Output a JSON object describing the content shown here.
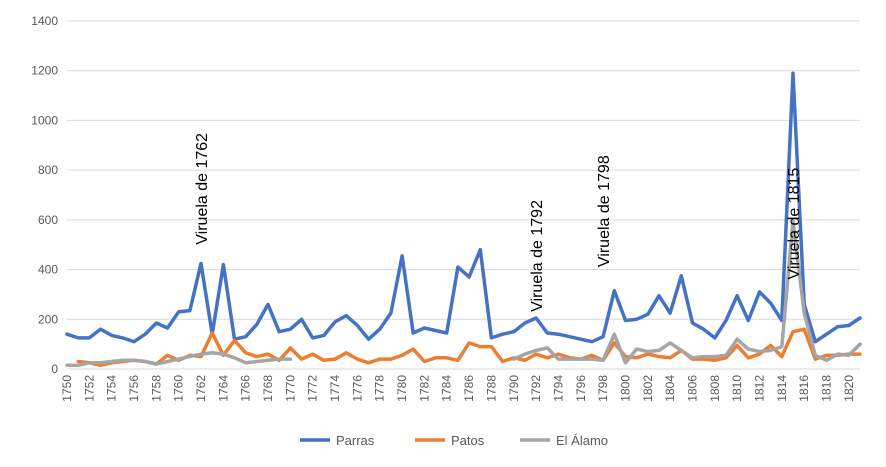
{
  "chart_data": {
    "type": "line",
    "title": "",
    "xlabel": "",
    "ylabel": "",
    "ylim": [
      0,
      1400
    ],
    "yticks": [
      0,
      200,
      400,
      600,
      800,
      1000,
      1200,
      1400
    ],
    "xlim": [
      1750,
      1820
    ],
    "xticks": [
      1750,
      1752,
      1754,
      1756,
      1758,
      1760,
      1762,
      1764,
      1766,
      1768,
      1770,
      1772,
      1774,
      1776,
      1778,
      1780,
      1782,
      1784,
      1786,
      1788,
      1790,
      1792,
      1794,
      1796,
      1798,
      1800,
      1802,
      1804,
      1806,
      1808,
      1810,
      1812,
      1814,
      1816,
      1818,
      1820
    ],
    "grid": "horizontal",
    "legend": "bottom",
    "series": [
      {
        "name": "Parras",
        "color": "#4472C4",
        "points": [
          [
            1750,
            140
          ],
          [
            1751,
            125
          ],
          [
            1752,
            125
          ],
          [
            1753,
            160
          ],
          [
            1754,
            135
          ],
          [
            1755,
            125
          ],
          [
            1756,
            110
          ],
          [
            1757,
            140
          ],
          [
            1758,
            185
          ],
          [
            1759,
            165
          ],
          [
            1760,
            230
          ],
          [
            1761,
            235
          ],
          [
            1762,
            425
          ],
          [
            1763,
            140
          ],
          [
            1764,
            420
          ],
          [
            1765,
            120
          ],
          [
            1766,
            130
          ],
          [
            1767,
            180
          ],
          [
            1768,
            260
          ],
          [
            1769,
            150
          ],
          [
            1770,
            160
          ],
          [
            1771,
            200
          ],
          [
            1772,
            125
          ],
          [
            1773,
            135
          ],
          [
            1774,
            190
          ],
          [
            1775,
            215
          ],
          [
            1776,
            175
          ],
          [
            1777,
            120
          ],
          [
            1778,
            160
          ],
          [
            1779,
            225
          ],
          [
            1780,
            455
          ],
          [
            1781,
            145
          ],
          [
            1782,
            165
          ],
          [
            1783,
            155
          ],
          [
            1784,
            145
          ],
          [
            1785,
            410
          ],
          [
            1786,
            370
          ],
          [
            1787,
            480
          ],
          [
            1788,
            125
          ],
          [
            1789,
            140
          ],
          [
            1790,
            150
          ],
          [
            1791,
            185
          ],
          [
            1792,
            205
          ],
          [
            1793,
            145
          ],
          [
            1794,
            140
          ],
          [
            1795,
            130
          ],
          [
            1796,
            120
          ],
          [
            1797,
            110
          ],
          [
            1798,
            130
          ],
          [
            1799,
            315
          ],
          [
            1800,
            195
          ],
          [
            1801,
            200
          ],
          [
            1802,
            220
          ],
          [
            1803,
            295
          ],
          [
            1804,
            225
          ],
          [
            1805,
            375
          ],
          [
            1806,
            185
          ],
          [
            1807,
            160
          ],
          [
            1808,
            125
          ],
          [
            1809,
            195
          ],
          [
            1810,
            295
          ],
          [
            1811,
            195
          ],
          [
            1812,
            310
          ],
          [
            1813,
            265
          ],
          [
            1814,
            195
          ],
          [
            1815,
            1190
          ],
          [
            1816,
            260
          ],
          [
            1817,
            110
          ],
          [
            1818,
            140
          ],
          [
            1819,
            170
          ],
          [
            1820,
            175
          ],
          [
            1821,
            205
          ]
        ]
      },
      {
        "name": "Patos",
        "color": "#ED7D31",
        "points": [
          [
            1751,
            30
          ],
          [
            1752,
            25
          ],
          [
            1753,
            15
          ],
          [
            1754,
            25
          ],
          [
            1755,
            30
          ],
          [
            1756,
            35
          ],
          [
            1757,
            30
          ],
          [
            1758,
            20
          ],
          [
            1759,
            55
          ],
          [
            1760,
            35
          ],
          [
            1761,
            55
          ],
          [
            1762,
            50
          ],
          [
            1763,
            145
          ],
          [
            1764,
            55
          ],
          [
            1765,
            115
          ],
          [
            1766,
            65
          ],
          [
            1767,
            50
          ],
          [
            1768,
            60
          ],
          [
            1769,
            35
          ],
          [
            1770,
            85
          ],
          [
            1771,
            40
          ],
          [
            1772,
            60
          ],
          [
            1773,
            35
          ],
          [
            1774,
            40
          ],
          [
            1775,
            65
          ],
          [
            1776,
            40
          ],
          [
            1777,
            25
          ],
          [
            1778,
            40
          ],
          [
            1779,
            40
          ],
          [
            1780,
            55
          ],
          [
            1781,
            80
          ],
          [
            1782,
            30
          ],
          [
            1783,
            45
          ],
          [
            1784,
            45
          ],
          [
            1785,
            35
          ],
          [
            1786,
            105
          ],
          [
            1787,
            90
          ],
          [
            1788,
            90
          ],
          [
            1789,
            30
          ],
          [
            1790,
            45
          ],
          [
            1791,
            35
          ],
          [
            1792,
            60
          ],
          [
            1793,
            45
          ],
          [
            1794,
            60
          ],
          [
            1795,
            45
          ],
          [
            1796,
            40
          ],
          [
            1797,
            55
          ],
          [
            1798,
            35
          ],
          [
            1799,
            105
          ],
          [
            1800,
            50
          ],
          [
            1801,
            45
          ],
          [
            1802,
            60
          ],
          [
            1803,
            50
          ],
          [
            1804,
            45
          ],
          [
            1805,
            75
          ],
          [
            1806,
            40
          ],
          [
            1807,
            40
          ],
          [
            1808,
            35
          ],
          [
            1809,
            45
          ],
          [
            1810,
            95
          ],
          [
            1811,
            45
          ],
          [
            1812,
            60
          ],
          [
            1813,
            95
          ],
          [
            1814,
            50
          ],
          [
            1815,
            150
          ],
          [
            1816,
            160
          ],
          [
            1817,
            40
          ],
          [
            1818,
            55
          ],
          [
            1819,
            55
          ],
          [
            1820,
            60
          ],
          [
            1821,
            60
          ]
        ]
      },
      {
        "name": "El Álamo",
        "color": "#A5A5A5",
        "points": [
          [
            1750,
            15
          ],
          [
            1751,
            15
          ],
          [
            1752,
            25
          ],
          [
            1753,
            25
          ],
          [
            1754,
            30
          ],
          [
            1755,
            35
          ],
          [
            1756,
            35
          ],
          [
            1757,
            30
          ],
          [
            1758,
            20
          ],
          [
            1759,
            30
          ],
          [
            1760,
            40
          ],
          [
            1761,
            50
          ],
          [
            1762,
            60
          ],
          [
            1763,
            65
          ],
          [
            1764,
            60
          ],
          [
            1765,
            45
          ],
          [
            1766,
            25
          ],
          [
            1767,
            30
          ],
          [
            1768,
            35
          ],
          [
            1769,
            40
          ],
          [
            1770,
            40
          ],
          [
            1771,
            null
          ],
          [
            1790,
            40
          ],
          [
            1791,
            60
          ],
          [
            1792,
            75
          ],
          [
            1793,
            85
          ],
          [
            1794,
            40
          ],
          [
            1795,
            40
          ],
          [
            1796,
            40
          ],
          [
            1797,
            40
          ],
          [
            1798,
            35
          ],
          [
            1799,
            140
          ],
          [
            1800,
            25
          ],
          [
            1801,
            80
          ],
          [
            1802,
            70
          ],
          [
            1803,
            75
          ],
          [
            1804,
            105
          ],
          [
            1805,
            75
          ],
          [
            1806,
            45
          ],
          [
            1807,
            50
          ],
          [
            1808,
            50
          ],
          [
            1809,
            55
          ],
          [
            1810,
            120
          ],
          [
            1811,
            80
          ],
          [
            1812,
            70
          ],
          [
            1813,
            75
          ],
          [
            1814,
            90
          ],
          [
            1815,
            595
          ],
          [
            1816,
            225
          ],
          [
            1817,
            55
          ],
          [
            1818,
            35
          ],
          [
            1819,
            60
          ],
          [
            1820,
            55
          ],
          [
            1821,
            100
          ]
        ]
      }
    ],
    "annotations": [
      {
        "text": "Viruela de 1762",
        "x": 1762,
        "y": 500
      },
      {
        "text": "Viruela de 1792",
        "x": 1792,
        "y": 230
      },
      {
        "text": "Viruela de 1798",
        "x": 1798,
        "y": 410
      },
      {
        "text": "Viruela de 1815",
        "x": 1815,
        "y": 360
      }
    ]
  }
}
